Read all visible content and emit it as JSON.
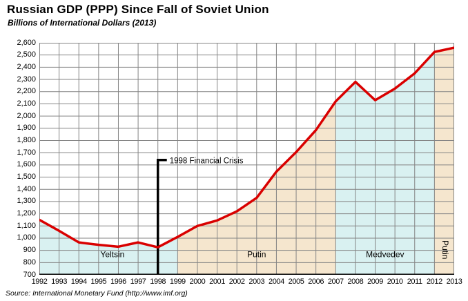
{
  "chart_data": {
    "type": "area",
    "title": "Russian GDP (PPP) Since Fall of Soviet Union",
    "subtitle": "Billions of International Dollars (2013)",
    "source": "Source: International Monetary Fund (http://www.imf.org)",
    "x": [
      1992,
      1993,
      1994,
      1995,
      1996,
      1997,
      1998,
      1999,
      2000,
      2001,
      2002,
      2003,
      2004,
      2005,
      2006,
      2007,
      2008,
      2009,
      2010,
      2011,
      2012,
      2013
    ],
    "x_tick_labels": [
      "1992",
      "1993",
      "1994",
      "1995",
      "1996",
      "1997",
      "1998",
      "1999",
      "2000",
      "2001",
      "2002",
      "2003",
      "2004",
      "2005",
      "2006",
      "2007",
      "2008",
      "2009",
      "2010",
      "2011",
      "2012",
      "2013"
    ],
    "values": [
      1150,
      1060,
      965,
      945,
      930,
      965,
      925,
      1010,
      1100,
      1145,
      1220,
      1330,
      1545,
      1705,
      1885,
      2120,
      2280,
      2130,
      2225,
      2350,
      2525,
      2560
    ],
    "ylim": [
      700,
      2600
    ],
    "ytick_step": 100,
    "y_tick_labels": [
      "2,600",
      "2,500",
      "2,400",
      "2,300",
      "2,200",
      "2,100",
      "2,000",
      "1,900",
      "1,800",
      "1,700",
      "1,600",
      "1,500",
      "1,400",
      "1,300",
      "1,200",
      "1,100",
      "1,000",
      "900",
      "800",
      "700"
    ],
    "grid": true,
    "legend": "none",
    "line_color": "#d90000",
    "grid_color": "#848484",
    "axis_color": "#000000",
    "annotation": {
      "text": "1998 Financial Crisis",
      "year": 1998,
      "top_value": 1650
    },
    "eras": [
      {
        "label": "Yeltsin",
        "start": 1992,
        "end": 1999,
        "color": "#d9f1f1",
        "label_year": 1995.7,
        "label_value": 845,
        "vertical": false
      },
      {
        "label": "Putin",
        "start": 1999,
        "end": 2007,
        "color": "#f5e6ce",
        "label_year": 2003.0,
        "label_value": 845,
        "vertical": false
      },
      {
        "label": "Medvedev",
        "start": 2007,
        "end": 2012,
        "color": "#d9f1f1",
        "label_year": 2009.5,
        "label_value": 845,
        "vertical": false
      },
      {
        "label": "Putin",
        "start": 2012,
        "end": 2013,
        "color": "#f5e6ce",
        "label_year": 2012.4,
        "label_value": 905,
        "vertical": true
      }
    ]
  }
}
